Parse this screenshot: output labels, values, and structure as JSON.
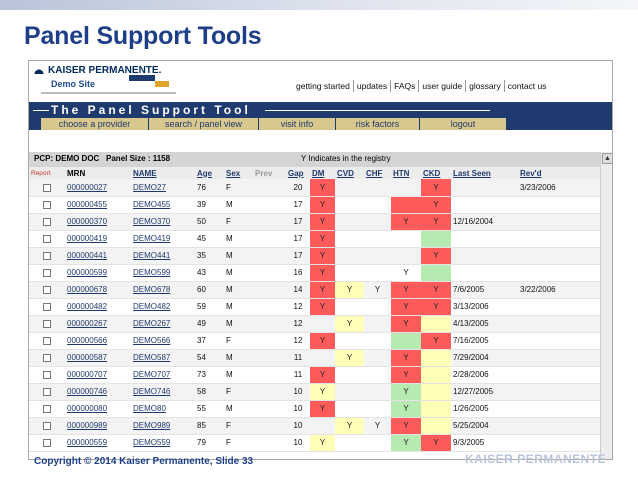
{
  "slide": {
    "title": "Panel Support Tools",
    "copyright": "Copyright © 2014 Kaiser Permanente, Slide 33",
    "watermark": "KAISER PERMANENTE"
  },
  "header": {
    "logo_text": "KAISER PERMANENTE.",
    "site_label": "Demo Site",
    "top_links": [
      "getting started",
      "updates",
      "FAQs",
      "user guide",
      "glossary",
      "contact us"
    ],
    "banner": "The Panel Support Tool",
    "nav": [
      "choose a provider",
      "search / panel view",
      "visit info",
      "risk factors",
      "logout"
    ]
  },
  "table_info": {
    "pcp": "PCP: DEMO DOC",
    "panel_size": "Panel Size : 1158",
    "note": "Y Indicates in the registry"
  },
  "columns": [
    "Report",
    "MRN",
    "NAME",
    "Age",
    "Sex",
    "Prev",
    "Gap",
    "DM",
    "CVD",
    "CHF",
    "HTN",
    "CKD",
    "Last Seen",
    "Rev'd"
  ],
  "rows": [
    {
      "mrn": "000000027",
      "name": "DEMO27",
      "age": "76",
      "sex": "F",
      "gap": "20",
      "dm": "Y",
      "cvd": "",
      "chf": "",
      "htn": "",
      "ckd": "Y",
      "last_seen": "",
      "revd": "3/23/2006",
      "c": [
        "red",
        "",
        "",
        "",
        "red"
      ]
    },
    {
      "mrn": "000000455",
      "name": "DEMO455",
      "age": "39",
      "sex": "M",
      "gap": "17",
      "dm": "Y",
      "cvd": "",
      "chf": "",
      "htn": "",
      "ckd": "Y",
      "last_seen": "",
      "revd": "",
      "c": [
        "red",
        "",
        "",
        "red",
        "red"
      ]
    },
    {
      "mrn": "000000370",
      "name": "DEMO370",
      "age": "50",
      "sex": "F",
      "gap": "17",
      "dm": "Y",
      "cvd": "",
      "chf": "",
      "htn": "Y",
      "ckd": "Y",
      "last_seen": "12/16/2004",
      "revd": "",
      "c": [
        "red",
        "",
        "",
        "red",
        "red"
      ]
    },
    {
      "mrn": "000000419",
      "name": "DEMO419",
      "age": "45",
      "sex": "M",
      "gap": "17",
      "dm": "Y",
      "cvd": "",
      "chf": "",
      "htn": "",
      "ckd": "",
      "last_seen": "",
      "revd": "",
      "c": [
        "red",
        "",
        "",
        "",
        "grn"
      ]
    },
    {
      "mrn": "000000441",
      "name": "DEMO441",
      "age": "35",
      "sex": "M",
      "gap": "17",
      "dm": "Y",
      "cvd": "",
      "chf": "",
      "htn": "",
      "ckd": "Y",
      "last_seen": "",
      "revd": "",
      "c": [
        "red",
        "",
        "",
        "",
        "red"
      ]
    },
    {
      "mrn": "000000599",
      "name": "DEMO599",
      "age": "43",
      "sex": "M",
      "gap": "16",
      "dm": "Y",
      "cvd": "",
      "chf": "",
      "htn": "Y",
      "ckd": "",
      "last_seen": "",
      "revd": "",
      "c": [
        "red",
        "",
        "",
        "",
        "grn"
      ]
    },
    {
      "mrn": "000000678",
      "name": "DEMO678",
      "age": "60",
      "sex": "M",
      "gap": "14",
      "dm": "Y",
      "cvd": "Y",
      "chf": "Y",
      "htn": "Y",
      "ckd": "Y",
      "last_seen": "7/6/2005",
      "revd": "3/22/2006",
      "c": [
        "red",
        "yel",
        "",
        "red",
        "red"
      ]
    },
    {
      "mrn": "000000482",
      "name": "DEMO482",
      "age": "59",
      "sex": "M",
      "gap": "12",
      "dm": "Y",
      "cvd": "",
      "chf": "",
      "htn": "Y",
      "ckd": "Y",
      "last_seen": "3/13/2006",
      "revd": "",
      "c": [
        "red",
        "",
        "",
        "red",
        "red"
      ]
    },
    {
      "mrn": "000000267",
      "name": "DEMO267",
      "age": "49",
      "sex": "M",
      "gap": "12",
      "dm": "",
      "cvd": "Y",
      "chf": "",
      "htn": "Y",
      "ckd": "",
      "last_seen": "4/13/2005",
      "revd": "",
      "c": [
        "",
        "yel",
        "",
        "red",
        "yel"
      ]
    },
    {
      "mrn": "000000566",
      "name": "DEMO566",
      "age": "37",
      "sex": "F",
      "gap": "12",
      "dm": "Y",
      "cvd": "",
      "chf": "",
      "htn": "",
      "ckd": "Y",
      "last_seen": "7/16/2005",
      "revd": "",
      "c": [
        "red",
        "",
        "",
        "grn",
        "red"
      ]
    },
    {
      "mrn": "000000587",
      "name": "DEMO587",
      "age": "54",
      "sex": "M",
      "gap": "11",
      "dm": "",
      "cvd": "Y",
      "chf": "",
      "htn": "Y",
      "ckd": "",
      "last_seen": "7/29/2004",
      "revd": "",
      "c": [
        "",
        "yel",
        "",
        "red",
        "yel"
      ]
    },
    {
      "mrn": "000000707",
      "name": "DEMO707",
      "age": "73",
      "mrn2": "",
      "sex": "M",
      "gap": "11",
      "dm": "Y",
      "cvd": "",
      "chf": "",
      "htn": "Y",
      "ckd": "",
      "last_seen": "2/28/2006",
      "revd": "",
      "c": [
        "red",
        "",
        "",
        "red",
        "yel"
      ]
    },
    {
      "mrn": "000000746",
      "name": "DEMO746",
      "age": "58",
      "sex": "F",
      "gap": "10",
      "dm": "Y",
      "cvd": "",
      "chf": "",
      "htn": "Y",
      "ckd": "",
      "last_seen": "12/27/2005",
      "revd": "",
      "c": [
        "yel",
        "",
        "",
        "grn",
        "yel"
      ]
    },
    {
      "mrn": "000000080",
      "name": "DEMO80",
      "age": "55",
      "sex": "M",
      "gap": "10",
      "dm": "Y",
      "cvd": "",
      "chf": "",
      "htn": "Y",
      "ckd": "",
      "last_seen": "1/26/2005",
      "revd": "",
      "c": [
        "red",
        "",
        "",
        "grn",
        "yel"
      ]
    },
    {
      "mrn": "000000989",
      "name": "DEMO989",
      "age": "85",
      "sex": "F",
      "gap": "10",
      "dm": "",
      "cvd": "Y",
      "chf": "Y",
      "htn": "Y",
      "ckd": "",
      "last_seen": "5/25/2004",
      "revd": "",
      "c": [
        "",
        "yel",
        "",
        "red",
        "yel"
      ]
    },
    {
      "mrn": "000000559",
      "name": "DEMO559",
      "age": "79",
      "sex": "F",
      "gap": "10",
      "dm": "Y",
      "cvd": "",
      "chf": "",
      "htn": "Y",
      "ckd": "Y",
      "last_seen": "9/3/2005",
      "revd": "",
      "c": [
        "yel",
        "",
        "",
        "grn",
        "red"
      ]
    }
  ],
  "colors": {
    "flag_red": "#ff5b5b",
    "flag_yellow": "#ffffb8",
    "flag_green": "#b6eab0",
    "brand_blue": "#1e3f88"
  }
}
